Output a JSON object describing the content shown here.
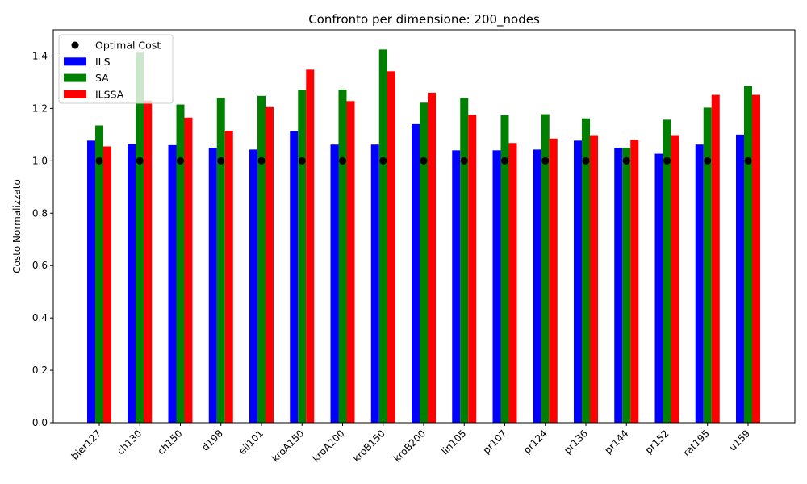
{
  "chart_data": {
    "type": "bar",
    "title": "Confronto per dimensione: 200_nodes",
    "xlabel": "",
    "ylabel": "Costo Normalizzato",
    "ylim": [
      0,
      1.5
    ],
    "yticks": [
      0.0,
      0.2,
      0.4,
      0.6,
      0.8,
      1.0,
      1.2,
      1.4
    ],
    "ytick_labels": [
      "0.0",
      "0.2",
      "0.4",
      "0.6",
      "0.8",
      "1.0",
      "1.2",
      "1.4"
    ],
    "grid": false,
    "legend_position": "top-left",
    "categories": [
      "bier127",
      "ch130",
      "ch150",
      "d198",
      "eil101",
      "kroA150",
      "kroA200",
      "kroB150",
      "kroB200",
      "lin105",
      "pr107",
      "pr124",
      "pr136",
      "pr144",
      "pr152",
      "rat195",
      "u159"
    ],
    "series": [
      {
        "name": "ILS",
        "color": "#0000ff",
        "values": [
          1.077,
          1.064,
          1.06,
          1.05,
          1.043,
          1.113,
          1.062,
          1.062,
          1.14,
          1.04,
          1.04,
          1.043,
          1.077,
          1.05,
          1.027,
          1.062,
          1.1
        ]
      },
      {
        "name": "SA",
        "color": "#008000",
        "values": [
          1.135,
          1.413,
          1.215,
          1.24,
          1.248,
          1.27,
          1.272,
          1.425,
          1.222,
          1.24,
          1.174,
          1.178,
          1.162,
          1.05,
          1.157,
          1.203,
          1.285
        ]
      },
      {
        "name": "ILSSA",
        "color": "#ff0000",
        "values": [
          1.055,
          1.23,
          1.165,
          1.115,
          1.205,
          1.348,
          1.228,
          1.342,
          1.26,
          1.175,
          1.068,
          1.085,
          1.098,
          1.08,
          1.098,
          1.252,
          1.252
        ]
      }
    ],
    "optimal": {
      "name": "Optimal Cost",
      "color": "#000000",
      "value": 1.0
    },
    "legend_order": [
      "Optimal Cost",
      "ILS",
      "SA",
      "ILSSA"
    ]
  }
}
